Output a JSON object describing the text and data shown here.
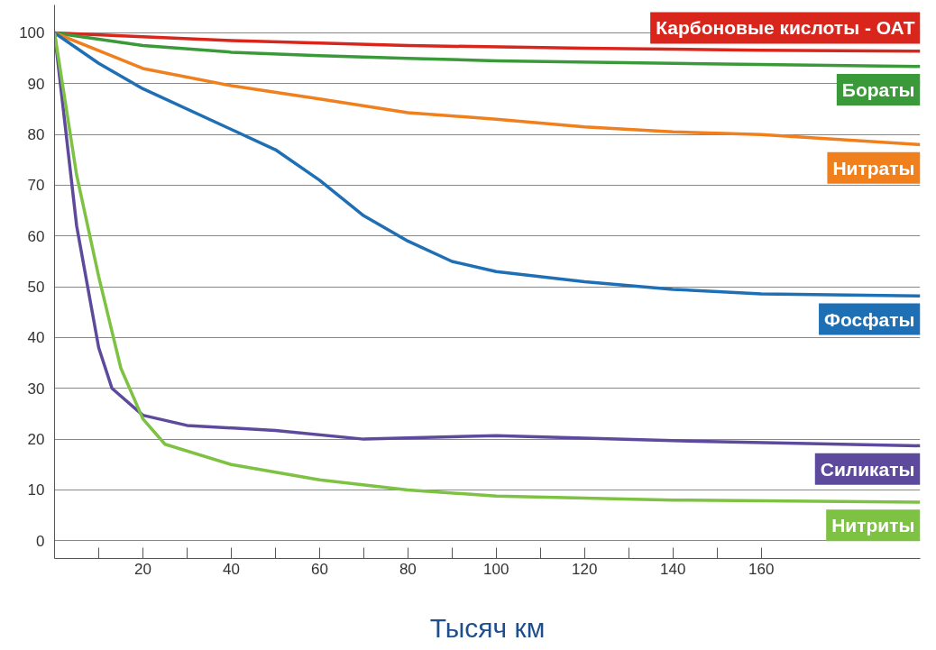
{
  "chart_data": {
    "type": "line",
    "xlabel": "Тысяч км",
    "xlim": [
      0,
      196
    ],
    "ylim": [
      -3.5,
      105.5
    ],
    "xticks": [
      {
        "value": 10,
        "label": null
      },
      20,
      {
        "value": 30,
        "label": null
      },
      40,
      {
        "value": 50,
        "label": null
      },
      60,
      {
        "value": 70,
        "label": null
      },
      80,
      {
        "value": 90,
        "label": null
      },
      100,
      {
        "value": 110,
        "label": null
      },
      120,
      {
        "value": 130,
        "label": null
      },
      140,
      {
        "value": 150,
        "label": null
      },
      160
    ],
    "yticks": [
      0,
      10,
      20,
      30,
      40,
      50,
      60,
      70,
      80,
      90,
      100
    ],
    "grid": "y",
    "legend": "right",
    "marker": "none",
    "line_style": "solid",
    "series": [
      {
        "name": "Карбоновые кислоты - ОАТ",
        "color": "#d8261c",
        "x": [
          0,
          40,
          80,
          120,
          160,
          196
        ],
        "values": [
          100,
          98.5,
          97.5,
          97,
          96.6,
          96.4
        ]
      },
      {
        "name": "Бораты",
        "color": "#3a9a3a",
        "x": [
          0,
          20,
          40,
          60,
          80,
          100,
          140,
          196
        ],
        "values": [
          100,
          97.5,
          96.2,
          95.5,
          95,
          94.5,
          94,
          93.4
        ]
      },
      {
        "name": "Нитраты",
        "color": "#f07f1e",
        "x": [
          0,
          10,
          20,
          40,
          60,
          80,
          100,
          120,
          140,
          160,
          196
        ],
        "values": [
          100,
          96.5,
          93,
          89.6,
          87,
          84.3,
          83,
          81.5,
          80.5,
          80,
          78
        ]
      },
      {
        "name": "Фосфаты",
        "color": "#1f6fb5",
        "x": [
          0,
          10,
          20,
          40,
          50,
          60,
          70,
          80,
          90,
          100,
          120,
          140,
          160,
          196
        ],
        "values": [
          100,
          94,
          89,
          81,
          77,
          71,
          64,
          59,
          55,
          53,
          51,
          49.5,
          48.6,
          48.2
        ]
      },
      {
        "name": "Силикаты",
        "color": "#5e4a9c",
        "x": [
          0,
          5,
          10,
          13,
          20,
          30,
          50,
          70,
          100,
          140,
          196
        ],
        "values": [
          100,
          62,
          38,
          30,
          24.7,
          22.7,
          21.7,
          20,
          20.7,
          19.7,
          18.7
        ]
      },
      {
        "name": "Нитриты",
        "color": "#7dc242",
        "x": [
          0,
          5,
          10,
          15,
          20,
          25,
          40,
          60,
          80,
          100,
          140,
          196
        ],
        "values": [
          100,
          72,
          52,
          34,
          24,
          19,
          15,
          12,
          10,
          8.8,
          8,
          7.6
        ]
      }
    ]
  }
}
